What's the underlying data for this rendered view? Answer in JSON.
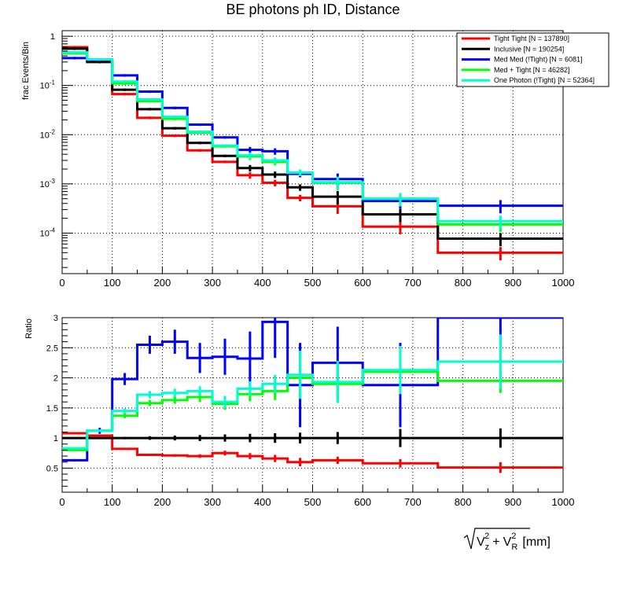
{
  "chart_data": [
    {
      "type": "line",
      "panel": "top",
      "title": "BE photons ph ID, Distance",
      "ylabel": "frac Events/Bin",
      "xlabel": "",
      "yscale": "log",
      "xlim": [
        0,
        1000
      ],
      "ylim": [
        1.5e-05,
        1.3
      ],
      "y_tick_labels": [
        "1",
        "10",
        "10",
        "10",
        "10"
      ],
      "y_tick_exps": [
        "",
        "-1",
        "-2",
        "-3",
        "-4"
      ],
      "x_tick_labels": [
        "0",
        "100",
        "200",
        "300",
        "400",
        "500",
        "600",
        "700",
        "800",
        "900",
        "1000"
      ],
      "bin_edges": [
        0,
        50,
        100,
        150,
        200,
        250,
        300,
        350,
        400,
        450,
        500,
        600,
        750,
        1000
      ],
      "series": [
        {
          "name": "Tight Tight [N = 137890]",
          "color": "#ff0000",
          "values": [
            0.6,
            0.31,
            0.067,
            0.022,
            0.0095,
            0.0048,
            0.0028,
            0.0015,
            0.00105,
            0.00052,
            0.00035,
            0.000135,
            4e-05
          ]
        },
        {
          "name": "Inclusive [N = 190254]",
          "color": "#000000",
          "values": [
            0.56,
            0.3,
            0.082,
            0.033,
            0.0135,
            0.0068,
            0.0037,
            0.0021,
            0.00155,
            0.00085,
            0.00055,
            0.00024,
            7.7e-05
          ]
        },
        {
          "name": "Med Med (!Tight) [N = 6081]",
          "color": "#0000ff",
          "values": [
            0.36,
            0.33,
            0.16,
            0.075,
            0.035,
            0.016,
            0.0088,
            0.0049,
            0.0046,
            0.0016,
            0.00125,
            0.00045,
            0.00036
          ]
        },
        {
          "name": "Med + Tight [N = 46282]",
          "color": "#00ff00",
          "values": [
            0.45,
            0.34,
            0.11,
            0.048,
            0.021,
            0.011,
            0.0058,
            0.0036,
            0.0028,
            0.0017,
            0.00105,
            0.0005,
            0.00015
          ]
        },
        {
          "name": "One Photon (!Tight) [N = 52364]",
          "color": "#00ffcc",
          "values": [
            0.47,
            0.34,
            0.12,
            0.052,
            0.023,
            0.0115,
            0.006,
            0.0038,
            0.003,
            0.0017,
            0.00108,
            0.0005,
            0.000175
          ]
        }
      ]
    },
    {
      "type": "line",
      "panel": "bottom",
      "title": "",
      "ylabel": "Ratio",
      "xlabel": "√(V_z² + V_R²) [mm]",
      "xlabel_parts": {
        "v": "V",
        "sub_z": "z",
        "sub_r": "R",
        "sup": "2",
        "plus": "+",
        "unit": "[mm]"
      },
      "xlim": [
        0,
        1000
      ],
      "ylim": [
        0.1,
        3.0
      ],
      "y_tick_labels": [
        "0.5",
        "1",
        "1.5",
        "2",
        "2.5",
        "3"
      ],
      "y_ticks": [
        0.5,
        1,
        1.5,
        2,
        2.5,
        3
      ],
      "x_tick_labels": [
        "0",
        "100",
        "200",
        "300",
        "400",
        "500",
        "600",
        "700",
        "800",
        "900",
        "1000"
      ],
      "bin_edges": [
        0,
        50,
        100,
        150,
        200,
        250,
        300,
        350,
        400,
        450,
        500,
        600,
        750,
        1000
      ],
      "series": [
        {
          "name": "Tight Tight",
          "color": "#ff0000",
          "values": [
            1.08,
            1.04,
            0.82,
            0.72,
            0.71,
            0.7,
            0.75,
            0.7,
            0.66,
            0.6,
            0.63,
            0.58,
            0.51
          ],
          "errors": [
            0.01,
            0.01,
            0.01,
            0.02,
            0.02,
            0.03,
            0.04,
            0.05,
            0.06,
            0.07,
            0.06,
            0.07,
            0.09
          ]
        },
        {
          "name": "Inclusive",
          "color": "#000000",
          "values": [
            1,
            1,
            1,
            1,
            1,
            1,
            1,
            1,
            1,
            1,
            1,
            1,
            1
          ],
          "errors": [
            0.01,
            0.01,
            0.02,
            0.03,
            0.04,
            0.05,
            0.06,
            0.07,
            0.08,
            0.09,
            0.1,
            0.15,
            0.16
          ]
        },
        {
          "name": "Med Med (!Tight)",
          "color": "#0000ff",
          "values": [
            0.63,
            1.12,
            1.98,
            2.55,
            2.6,
            2.33,
            2.35,
            2.32,
            2.93,
            1.88,
            2.25,
            1.88,
            3.0
          ],
          "errors": [
            0.02,
            0.05,
            0.1,
            0.15,
            0.2,
            0.25,
            0.3,
            0.45,
            0.6,
            0.7,
            0.6,
            0.7,
            0.5
          ]
        },
        {
          "name": "Med + Tight",
          "color": "#00ff00",
          "values": [
            0.8,
            1.12,
            1.37,
            1.58,
            1.63,
            1.68,
            1.57,
            1.73,
            1.78,
            2.0,
            1.9,
            2.1,
            1.95
          ],
          "errors": [
            0.01,
            0.02,
            0.04,
            0.05,
            0.06,
            0.08,
            0.1,
            0.12,
            0.15,
            0.3,
            0.3,
            0.3,
            0.2
          ]
        },
        {
          "name": "One Photon (!Tight)",
          "color": "#00ffcc",
          "values": [
            0.83,
            1.12,
            1.45,
            1.72,
            1.75,
            1.78,
            1.6,
            1.82,
            1.9,
            2.05,
            1.93,
            2.13,
            2.27
          ],
          "errors": [
            0.01,
            0.02,
            0.04,
            0.06,
            0.07,
            0.08,
            0.1,
            0.12,
            0.15,
            0.4,
            0.35,
            0.4,
            0.45
          ]
        }
      ]
    }
  ]
}
